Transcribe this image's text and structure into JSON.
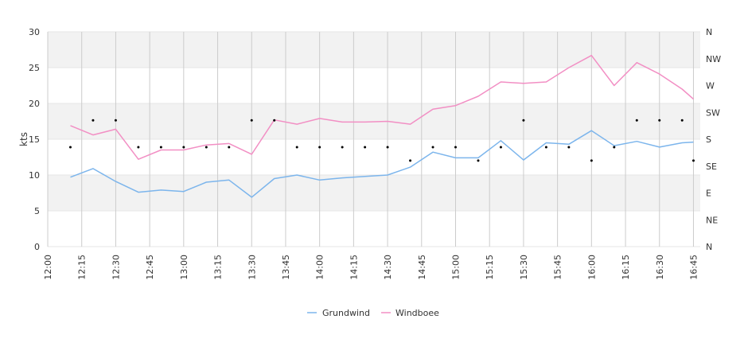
{
  "chart_data": {
    "type": "line",
    "ylabel": "kts",
    "ylim": [
      0,
      30
    ],
    "y_ticks": [
      "0",
      "5",
      "10",
      "15",
      "20",
      "25",
      "30"
    ],
    "right_axis_ticks": [
      "N",
      "NE",
      "E",
      "SE",
      "S",
      "SW",
      "W",
      "NW",
      "N"
    ],
    "x_ticks": [
      "12:00",
      "12:15",
      "12:30",
      "12:45",
      "13:00",
      "13:15",
      "13:30",
      "13:45",
      "14:00",
      "14:15",
      "14:30",
      "14:45",
      "15:00",
      "15:15",
      "15:30",
      "15:45",
      "16:00",
      "16:15",
      "16:30",
      "16:45"
    ],
    "x": [
      "12:10",
      "12:20",
      "12:30",
      "12:40",
      "12:50",
      "13:00",
      "13:10",
      "13:20",
      "13:30",
      "13:40",
      "13:50",
      "14:00",
      "14:10",
      "14:20",
      "14:30",
      "14:40",
      "14:50",
      "15:00",
      "15:10",
      "15:20",
      "15:30",
      "15:40",
      "15:50",
      "16:00",
      "16:10",
      "16:20",
      "16:30",
      "16:40",
      "16:45"
    ],
    "series": [
      {
        "name": "Grundwind",
        "color": "#7cb5ec",
        "values": [
          9.7,
          10.9,
          9.1,
          7.6,
          7.9,
          7.7,
          9.0,
          9.3,
          6.9,
          9.5,
          10.0,
          9.3,
          9.6,
          9.8,
          10.0,
          11.1,
          13.2,
          12.4,
          12.4,
          14.8,
          12.1,
          14.5,
          14.3,
          16.2,
          14.1,
          14.7,
          13.9,
          14.5,
          14.6
        ]
      },
      {
        "name": "Windboee",
        "color": "#f28fc4",
        "values": [
          16.9,
          15.6,
          16.4,
          12.2,
          13.5,
          13.5,
          14.2,
          14.4,
          12.9,
          17.7,
          17.1,
          17.9,
          17.4,
          17.4,
          17.5,
          17.1,
          19.2,
          19.7,
          21.0,
          23.0,
          22.8,
          23.0,
          25.0,
          26.7,
          22.5,
          25.7,
          24.1,
          22.0,
          20.6
        ]
      }
    ],
    "direction_dots": [
      "S",
      "SW",
      "SW",
      "S",
      "S",
      "S",
      "S",
      "S",
      "SW",
      "SW",
      "S",
      "S",
      "S",
      "S",
      "S",
      "SSE",
      "S",
      "S",
      "SSE",
      "S",
      "SW",
      "S",
      "S",
      "SSE",
      "S",
      "SW",
      "SW",
      "SW",
      "SSE"
    ],
    "grid": true,
    "alternate_bands": true,
    "legend_position": "bottom-center"
  }
}
